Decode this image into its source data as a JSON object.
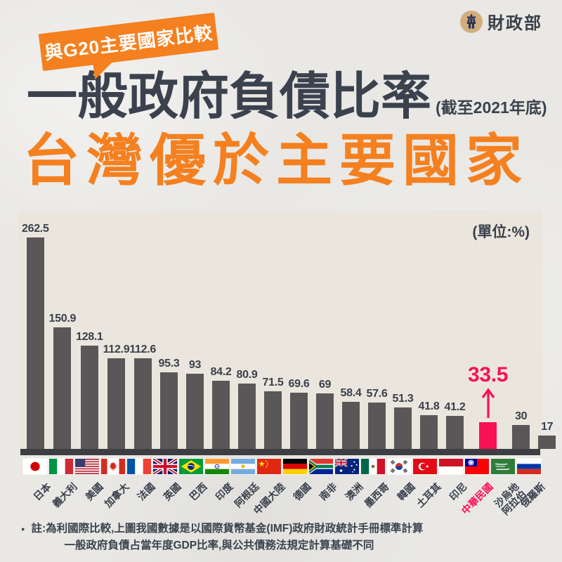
{
  "header": {
    "badge_label": "與G20主要國家比較",
    "org_name": "財政部",
    "logo_icon": "ministry-of-finance-emblem"
  },
  "title": {
    "main": "一般政府負債比率",
    "date_note": "(截至2021年底)",
    "subtitle": "台灣優於主要國家"
  },
  "chart_data": {
    "type": "bar",
    "title": "一般政府負債比率(截至2021年底)",
    "subtitle": "台灣優於主要國家",
    "unit_label": "(單位:%)",
    "categories": [
      "日本",
      "義大利",
      "美國",
      "加拿大",
      "法國",
      "英國",
      "巴西",
      "印度",
      "阿根廷",
      "中國大陸",
      "德國",
      "南非",
      "澳洲",
      "墨西哥",
      "韓國",
      "土耳其",
      "印尼",
      "中華民國",
      "沙烏地阿拉伯",
      "俄羅斯"
    ],
    "values": [
      262.5,
      150.9,
      128.1,
      112.9,
      112.6,
      95.3,
      93,
      84.2,
      80.9,
      71.5,
      69.6,
      69,
      58.4,
      57.6,
      51.3,
      41.8,
      41.2,
      33.5,
      30,
      17
    ],
    "flags": [
      "japan",
      "italy",
      "usa",
      "canada",
      "france",
      "uk",
      "brazil",
      "india",
      "argentina",
      "china",
      "germany",
      "south-africa",
      "australia",
      "mexico",
      "south-korea",
      "turkey",
      "indonesia",
      "taiwan",
      "saudi-arabia",
      "russia"
    ],
    "highlight": {
      "index": 17,
      "label": "中華民國",
      "value": 33.5,
      "arrow_icon": "up-arrow"
    },
    "bar_color": "#595757",
    "highlight_color": "#f81155",
    "value_labels": true,
    "grid": false,
    "legend": false,
    "ylim": [
      0,
      270
    ],
    "category_tilt_deg": -45
  },
  "footnote": {
    "bullet": "●",
    "line1": "註:為利國際比較,上圖我國數據是以國際貨幣基金(IMF)政府財政統計手冊標準計算",
    "line2": "一般政府負債占當年度GDP比率,與公共債務法規定計算基礎不同"
  },
  "colors": {
    "accent_orange": "#f5801f",
    "highlight_pink": "#f81155",
    "bar_gray": "#595757",
    "axis_dark": "#3c3e44",
    "text_dark": "#3b424e",
    "panel_cream": "#ebe6dd",
    "page_bg": "#e9e8e5",
    "logo_gold": "#d2ae7e",
    "logo_navy": "#253056"
  }
}
